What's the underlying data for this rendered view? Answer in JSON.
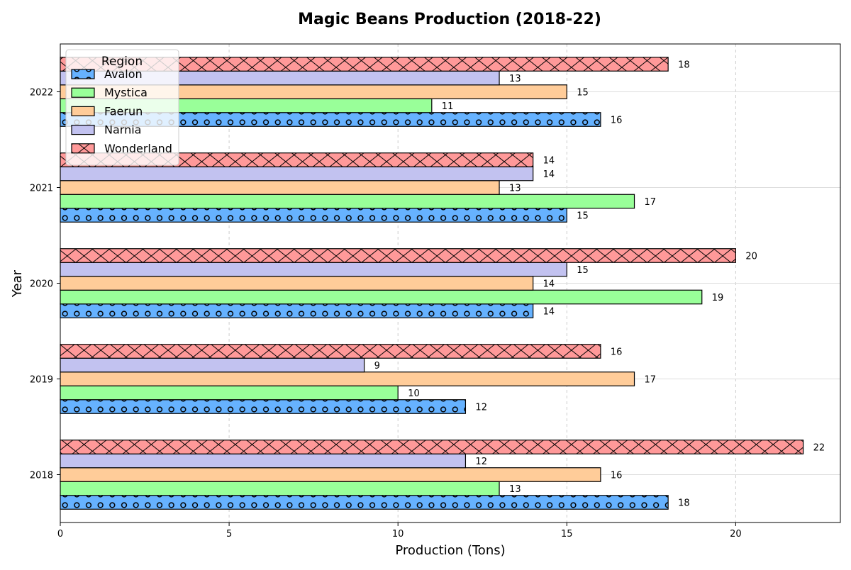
{
  "chart_data": {
    "type": "bar",
    "orientation": "horizontal",
    "title": "Magic Beans Production (2018-22)",
    "xlabel": "Production (Tons)",
    "ylabel": "Year",
    "categories": [
      "2018",
      "2019",
      "2020",
      "2021",
      "2022"
    ],
    "xlim": [
      0,
      23.1
    ],
    "xticks": [
      "0",
      "5",
      "10",
      "15",
      "20"
    ],
    "grid": true,
    "legend": {
      "title": "Region",
      "placement": "top-left"
    },
    "series": [
      {
        "name": "Avalon",
        "values": [
          18,
          12,
          14,
          15,
          16
        ],
        "color": "#66b2ff",
        "hatch": "circles"
      },
      {
        "name": "Mystica",
        "values": [
          13,
          10,
          19,
          17,
          11
        ],
        "color": "#99ff99",
        "hatch": "none"
      },
      {
        "name": "Faerun",
        "values": [
          16,
          17,
          14,
          13,
          15
        ],
        "color": "#ffcc99",
        "hatch": "none"
      },
      {
        "name": "Narnia",
        "values": [
          12,
          9,
          15,
          14,
          13
        ],
        "color": "#c2c2f0",
        "hatch": "none"
      },
      {
        "name": "Wonderland",
        "values": [
          22,
          16,
          20,
          14,
          18
        ],
        "color": "#ff9999",
        "hatch": "cross"
      }
    ]
  }
}
